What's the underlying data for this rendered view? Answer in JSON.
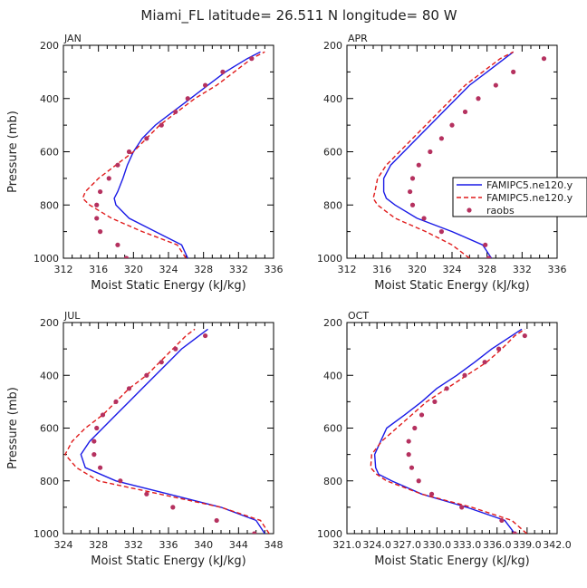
{
  "title": "Miami_FL  latitude= 26.511 N longitude= 80 W",
  "colors": {
    "model_a": "#1a1ae6",
    "model_b": "#e01a1a",
    "raobs": "#b5315f",
    "axis": "#000000"
  },
  "chart_data": [
    {
      "type": "line",
      "title": "JAN",
      "xlabel": "Moist Static Energy (kJ/kg)",
      "ylabel": "Pressure (mb)",
      "xlim": [
        312,
        336
      ],
      "ylim": [
        1000,
        200
      ],
      "xticks": [
        312,
        316,
        320,
        324,
        328,
        332,
        336
      ],
      "xticklabels": [
        "312",
        "316",
        "320",
        "324",
        "328",
        "332",
        "336"
      ],
      "yticks": [
        200,
        400,
        600,
        800,
        1000
      ],
      "series": [
        {
          "name": "FAMIPC5.ne120.y",
          "style": "solid",
          "color": "#1a1ae6",
          "points": [
            [
              326.2,
              1000
            ],
            [
              325.5,
              950
            ],
            [
              322.5,
              900
            ],
            [
              319.5,
              850
            ],
            [
              318,
              800
            ],
            [
              317.8,
              775
            ],
            [
              318.2,
              750
            ],
            [
              318.8,
              700
            ],
            [
              319.3,
              650
            ],
            [
              320,
              600
            ],
            [
              321,
              550
            ],
            [
              322.5,
              500
            ],
            [
              324.5,
              450
            ],
            [
              326.5,
              400
            ],
            [
              328.5,
              350
            ],
            [
              330.5,
              300
            ],
            [
              333,
              250
            ],
            [
              334.5,
              225
            ]
          ]
        },
        {
          "name": "FAMIPC5.ne120.y",
          "style": "dashed",
          "color": "#e01a1a",
          "points": [
            [
              326,
              1000
            ],
            [
              325,
              950
            ],
            [
              321,
              900
            ],
            [
              317.5,
              850
            ],
            [
              315,
              800
            ],
            [
              314.2,
              775
            ],
            [
              314.5,
              750
            ],
            [
              316,
              700
            ],
            [
              318,
              650
            ],
            [
              320,
              600
            ],
            [
              321.5,
              550
            ],
            [
              323,
              500
            ],
            [
              325,
              450
            ],
            [
              327,
              400
            ],
            [
              329.5,
              350
            ],
            [
              331.5,
              300
            ],
            [
              333.5,
              250
            ],
            [
              335,
              225
            ]
          ]
        },
        {
          "name": "raobs",
          "style": "marker",
          "color": "#b5315f",
          "points": [
            [
              319.2,
              1000
            ],
            [
              318.2,
              950
            ],
            [
              316.2,
              900
            ],
            [
              315.8,
              850
            ],
            [
              315.8,
              800
            ],
            [
              316.2,
              750
            ],
            [
              317.2,
              700
            ],
            [
              318.2,
              650
            ],
            [
              319.5,
              600
            ],
            [
              321.5,
              550
            ],
            [
              323.2,
              500
            ],
            [
              324.8,
              450
            ],
            [
              326.2,
              400
            ],
            [
              328.2,
              350
            ],
            [
              330.2,
              300
            ],
            [
              333.5,
              250
            ]
          ]
        }
      ]
    },
    {
      "type": "line",
      "title": "APR",
      "xlabel": "Moist Static Energy (kJ/kg)",
      "ylabel": "Pressure (mb)",
      "xlim": [
        312,
        336
      ],
      "ylim": [
        1000,
        200
      ],
      "xticks": [
        312,
        316,
        320,
        324,
        328,
        332,
        336
      ],
      "xticklabels": [
        "312",
        "316",
        "320",
        "324",
        "328",
        "332",
        "336"
      ],
      "yticks": [
        200,
        400,
        600,
        800,
        1000
      ],
      "legend": {
        "position": "right",
        "entries": [
          "FAMIPC5.ne120.y",
          "FAMIPC5.ne120.y",
          "raobs"
        ]
      },
      "series": [
        {
          "name": "FAMIPC5.ne120.y",
          "style": "solid",
          "color": "#1a1ae6",
          "points": [
            [
              328.5,
              1000
            ],
            [
              327.5,
              950
            ],
            [
              324,
              900
            ],
            [
              320,
              850
            ],
            [
              317.5,
              800
            ],
            [
              316.5,
              775
            ],
            [
              316.2,
              750
            ],
            [
              316.2,
              700
            ],
            [
              317,
              650
            ],
            [
              318.5,
              600
            ],
            [
              320,
              550
            ],
            [
              321.5,
              500
            ],
            [
              323,
              450
            ],
            [
              324.5,
              400
            ],
            [
              326,
              350
            ],
            [
              328,
              300
            ],
            [
              330,
              250
            ],
            [
              331,
              225
            ]
          ]
        },
        {
          "name": "FAMIPC5.ne120.y",
          "style": "dashed",
          "color": "#e01a1a",
          "points": [
            [
              326,
              1000
            ],
            [
              324,
              950
            ],
            [
              321,
              900
            ],
            [
              317.5,
              850
            ],
            [
              315.5,
              800
            ],
            [
              315,
              775
            ],
            [
              315.2,
              750
            ],
            [
              315.5,
              700
            ],
            [
              316.5,
              650
            ],
            [
              318,
              600
            ],
            [
              319.5,
              550
            ],
            [
              321,
              500
            ],
            [
              322.5,
              450
            ],
            [
              324,
              400
            ],
            [
              325.5,
              350
            ],
            [
              327.5,
              300
            ],
            [
              329.5,
              250
            ],
            [
              331,
              225
            ]
          ]
        },
        {
          "name": "raobs",
          "style": "marker",
          "color": "#b5315f",
          "points": [
            [
              328.2,
              1000
            ],
            [
              327.8,
              950
            ],
            [
              322.8,
              900
            ],
            [
              320.8,
              850
            ],
            [
              319.5,
              800
            ],
            [
              319.2,
              750
            ],
            [
              319.5,
              700
            ],
            [
              320.2,
              650
            ],
            [
              321.5,
              600
            ],
            [
              322.8,
              550
            ],
            [
              324,
              500
            ],
            [
              325.5,
              450
            ],
            [
              327,
              400
            ],
            [
              329,
              350
            ],
            [
              331,
              300
            ],
            [
              334.5,
              250
            ]
          ]
        }
      ]
    },
    {
      "type": "line",
      "title": "JUL",
      "xlabel": "Moist Static Energy (kJ/kg)",
      "ylabel": "Pressure (mb)",
      "xlim": [
        324,
        348
      ],
      "ylim": [
        1000,
        200
      ],
      "xticks": [
        324,
        328,
        332,
        336,
        340,
        344,
        348
      ],
      "xticklabels": [
        "324",
        "328",
        "332",
        "336",
        "340",
        "344",
        "348"
      ],
      "yticks": [
        200,
        400,
        600,
        800,
        1000
      ],
      "series": [
        {
          "name": "FAMIPC5.ne120.y",
          "style": "solid",
          "color": "#1a1ae6",
          "points": [
            [
              347,
              1000
            ],
            [
              346,
              950
            ],
            [
              342,
              900
            ],
            [
              336,
              850
            ],
            [
              330,
              800
            ],
            [
              326.5,
              750
            ],
            [
              326,
              700
            ],
            [
              327,
              650
            ],
            [
              328.5,
              600
            ],
            [
              330,
              550
            ],
            [
              331.5,
              500
            ],
            [
              333,
              450
            ],
            [
              334.5,
              400
            ],
            [
              336,
              350
            ],
            [
              337.5,
              300
            ],
            [
              339.5,
              250
            ],
            [
              340.5,
              225
            ]
          ]
        },
        {
          "name": "FAMIPC5.ne120.y",
          "style": "dashed",
          "color": "#e01a1a",
          "points": [
            [
              347.5,
              1000
            ],
            [
              346.5,
              950
            ],
            [
              342,
              900
            ],
            [
              335,
              850
            ],
            [
              328,
              800
            ],
            [
              325.5,
              750
            ],
            [
              324.2,
              700
            ],
            [
              325,
              650
            ],
            [
              326.5,
              600
            ],
            [
              328.5,
              550
            ],
            [
              330,
              500
            ],
            [
              331.5,
              450
            ],
            [
              333.5,
              400
            ],
            [
              335,
              350
            ],
            [
              336.5,
              300
            ],
            [
              338,
              250
            ],
            [
              339,
              225
            ]
          ]
        },
        {
          "name": "raobs",
          "style": "marker",
          "color": "#b5315f",
          "points": [
            [
              345.8,
              1000
            ],
            [
              341.5,
              950
            ],
            [
              336.5,
              900
            ],
            [
              333.5,
              850
            ],
            [
              330.5,
              800
            ],
            [
              328.2,
              750
            ],
            [
              327.5,
              700
            ],
            [
              327.5,
              650
            ],
            [
              327.8,
              600
            ],
            [
              328.5,
              550
            ],
            [
              330,
              500
            ],
            [
              331.5,
              450
            ],
            [
              333.5,
              400
            ],
            [
              335.2,
              350
            ],
            [
              336.8,
              300
            ],
            [
              340.2,
              250
            ]
          ]
        }
      ]
    },
    {
      "type": "line",
      "title": "OCT",
      "xlabel": "Moist Static Energy (kJ/kg)",
      "ylabel": "Pressure (mb)",
      "xlim": [
        321.03,
        342.03
      ],
      "ylim": [
        1000,
        200
      ],
      "xticks": [
        321.03,
        324.03,
        327.03,
        330.03,
        333.03,
        336.03,
        339.03,
        342.03
      ],
      "xticklabels": [
        "321.0",
        "324.0",
        "327.0",
        "330.0",
        "333.0",
        "336.0",
        "339.0",
        "342.0"
      ],
      "yticks": [
        200,
        400,
        600,
        800,
        1000
      ],
      "series": [
        {
          "name": "FAMIPC5.ne120.y",
          "style": "solid",
          "color": "#1a1ae6",
          "points": [
            [
              337.8,
              1000
            ],
            [
              336.8,
              950
            ],
            [
              333,
              900
            ],
            [
              328.5,
              850
            ],
            [
              325.5,
              800
            ],
            [
              324.2,
              775
            ],
            [
              323.9,
              750
            ],
            [
              323.8,
              700
            ],
            [
              324.4,
              650
            ],
            [
              325,
              600
            ],
            [
              326.8,
              550
            ],
            [
              328.5,
              500
            ],
            [
              330,
              450
            ],
            [
              332,
              400
            ],
            [
              333.8,
              350
            ],
            [
              335.5,
              300
            ],
            [
              337.5,
              250
            ],
            [
              338.5,
              225
            ]
          ]
        },
        {
          "name": "FAMIPC5.ne120.y",
          "style": "dashed",
          "color": "#e01a1a",
          "points": [
            [
              339,
              1000
            ],
            [
              337.5,
              950
            ],
            [
              333.5,
              900
            ],
            [
              328.5,
              850
            ],
            [
              325,
              800
            ],
            [
              324,
              775
            ],
            [
              323.4,
              750
            ],
            [
              323.5,
              700
            ],
            [
              324.5,
              650
            ],
            [
              326,
              600
            ],
            [
              327.5,
              550
            ],
            [
              329,
              500
            ],
            [
              331,
              450
            ],
            [
              333,
              400
            ],
            [
              335,
              350
            ],
            [
              336.5,
              300
            ],
            [
              337.8,
              250
            ],
            [
              338.8,
              225
            ]
          ]
        },
        {
          "name": "raobs",
          "style": "marker",
          "color": "#b5315f",
          "points": [
            [
              337.8,
              1000
            ],
            [
              336.5,
              950
            ],
            [
              332.5,
              900
            ],
            [
              329.5,
              850
            ],
            [
              328.2,
              800
            ],
            [
              327.5,
              750
            ],
            [
              327.2,
              700
            ],
            [
              327.2,
              650
            ],
            [
              327.8,
              600
            ],
            [
              328.5,
              550
            ],
            [
              329.8,
              500
            ],
            [
              331,
              450
            ],
            [
              332.8,
              400
            ],
            [
              334.8,
              350
            ],
            [
              336.2,
              300
            ],
            [
              338.8,
              250
            ]
          ]
        }
      ]
    }
  ]
}
